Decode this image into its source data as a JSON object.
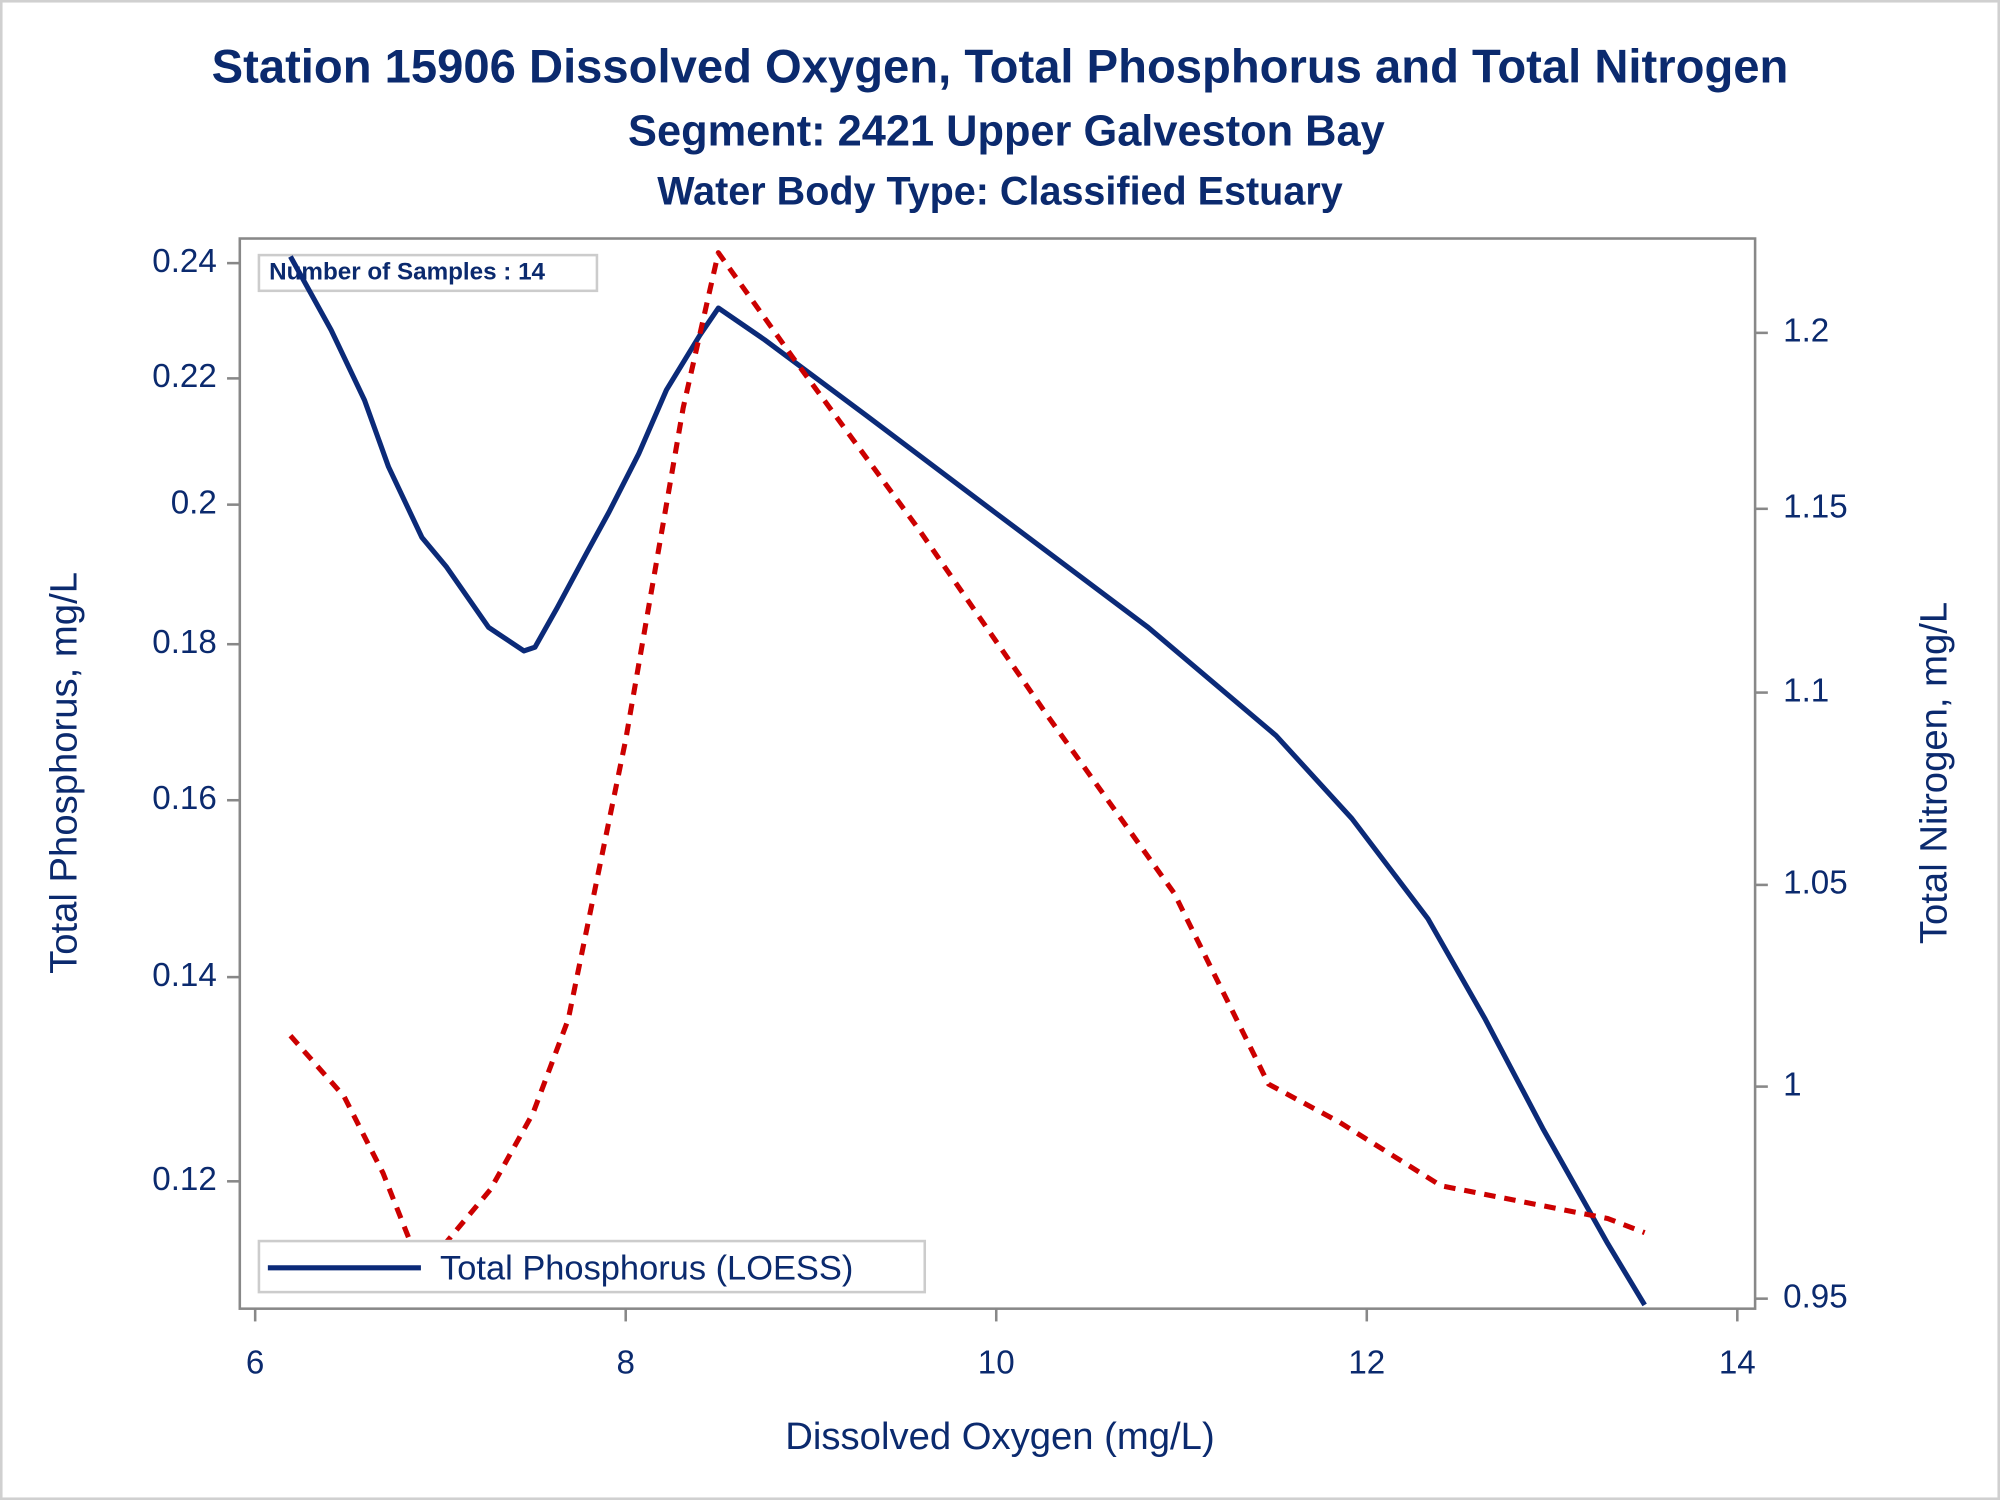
{
  "chart_data": {
    "type": "line",
    "title": "Station 15906  Dissolved Oxygen, Total Phosphorus and Total Nitrogen",
    "subtitle": "Segment: 2421  Upper Galveston Bay",
    "subtitle2": "Water Body Type: Classified Estuary",
    "annotation": "Number of Samples : 14",
    "xlabel": "Dissolved Oxygen (mg/L)",
    "ylabel": "Total Phosphorus, mg/L",
    "y2label": "Total Nitrogen, mg/L",
    "xlim": [
      5.917,
      14.096
    ],
    "xticks": [
      6,
      8,
      10,
      12,
      14
    ],
    "ylim": [
      0.109,
      0.2445
    ],
    "yticks": [
      0.12,
      0.14,
      0.16,
      0.18,
      0.2,
      0.22,
      0.24
    ],
    "ylog": true,
    "y2lim": [
      0.9477,
      1.2277
    ],
    "y2ticks": [
      0.95,
      1,
      1.05,
      1.1,
      1.15,
      1.2
    ],
    "y2log": true,
    "legend": "lower left",
    "series": [
      {
        "name": "Total Phosphorus (LOESS)",
        "color": "#0b2a78",
        "style": "solid",
        "x": [
          6.19,
          6.41,
          6.59,
          6.72,
          6.9,
          7.03,
          7.26,
          7.45,
          7.51,
          7.63,
          7.79,
          7.91,
          8.07,
          8.22,
          8.4,
          8.5,
          8.75,
          9.3,
          9.99,
          10.82,
          11.51,
          11.92,
          12.33,
          12.64,
          12.95,
          13.3,
          13.5
        ],
        "values": [
          0.2412,
          0.2282,
          0.2164,
          0.2058,
          0.1951,
          0.1909,
          0.1823,
          0.1791,
          0.1796,
          0.185,
          0.1929,
          0.1989,
          0.2078,
          0.2181,
          0.2273,
          0.232,
          0.2265,
          0.2139,
          0.1989,
          0.1823,
          0.168,
          0.1578,
          0.1463,
          0.1356,
          0.1249,
          0.1145,
          0.1093
        ]
      },
      {
        "color": "#cc0000",
        "style": "dotted",
        "axis": "y2",
        "x": [
          6.19,
          6.48,
          6.69,
          6.9,
          7.27,
          7.5,
          7.69,
          8.0,
          8.31,
          8.5,
          8.9,
          9.58,
          10.27,
          10.96,
          11.47,
          11.85,
          12.4,
          13.3,
          13.5
        ],
        "values": [
          1.0124,
          0.9976,
          0.9793,
          0.9563,
          0.9754,
          0.9936,
          1.0164,
          1.0876,
          1.1784,
          1.2235,
          1.193,
          1.1444,
          1.0943,
          1.0479,
          1.0006,
          0.9915,
          0.9763,
          0.9686,
          0.9653
        ]
      }
    ]
  }
}
